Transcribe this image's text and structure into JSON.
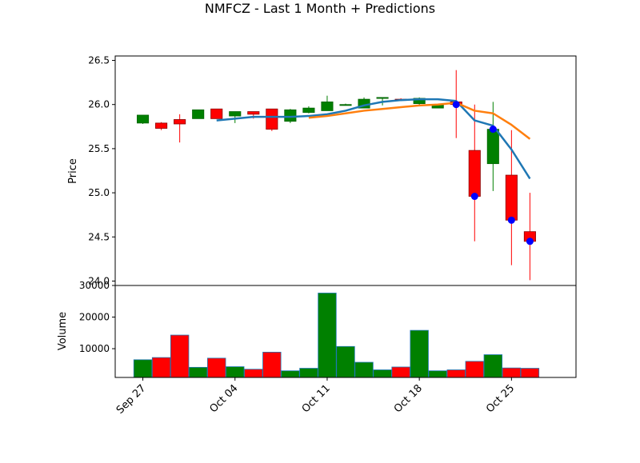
{
  "chart_data": {
    "type": "candlestick",
    "title": "NMFCZ - Last 1 Month + Predictions",
    "price_panel": {
      "ylabel": "Price",
      "ylim": [
        23.95,
        26.55
      ],
      "yticks": [
        "24.0",
        "24.5",
        "25.0",
        "25.5",
        "26.0",
        "26.5"
      ],
      "ytick_values": [
        24.0,
        24.5,
        25.0,
        25.5,
        26.0,
        26.5
      ]
    },
    "volume_panel": {
      "ylabel": "Volume",
      "ylim": [
        900,
        30000
      ],
      "yticks": [
        "10000",
        "20000",
        "30000"
      ],
      "ytick_values": [
        10000,
        20000,
        30000
      ]
    },
    "xlim": [
      -1.5,
      23.5
    ],
    "xticks": [
      {
        "index": 0,
        "label": "Sep 27"
      },
      {
        "index": 5,
        "label": "Oct 04"
      },
      {
        "index": 10,
        "label": "Oct 11"
      },
      {
        "index": 15,
        "label": "Oct 18"
      },
      {
        "index": 20,
        "label": "Oct 25"
      }
    ],
    "candles": [
      {
        "open": 25.79,
        "high": 25.88,
        "low": 25.78,
        "close": 25.88,
        "volume": 6500
      },
      {
        "open": 25.79,
        "high": 25.8,
        "low": 25.71,
        "close": 25.73,
        "volume": 7200
      },
      {
        "open": 25.83,
        "high": 25.89,
        "low": 25.57,
        "close": 25.78,
        "volume": 14300
      },
      {
        "open": 25.84,
        "high": 25.94,
        "low": 25.84,
        "close": 25.94,
        "volume": 4100
      },
      {
        "open": 25.95,
        "high": 25.95,
        "low": 25.84,
        "close": 25.84,
        "volume": 7000
      },
      {
        "open": 25.87,
        "high": 25.92,
        "low": 25.79,
        "close": 25.92,
        "volume": 4300
      },
      {
        "open": 25.92,
        "high": 25.92,
        "low": 25.84,
        "close": 25.89,
        "volume": 3500
      },
      {
        "open": 25.95,
        "high": 25.95,
        "low": 25.7,
        "close": 25.72,
        "volume": 8900
      },
      {
        "open": 25.81,
        "high": 25.95,
        "low": 25.79,
        "close": 25.94,
        "volume": 3000
      },
      {
        "open": 25.91,
        "high": 25.98,
        "low": 25.9,
        "close": 25.96,
        "volume": 3800
      },
      {
        "open": 25.93,
        "high": 26.1,
        "low": 25.93,
        "close": 26.03,
        "volume": 27600
      },
      {
        "open": 26.0,
        "high": 26.01,
        "low": 26.0,
        "close": 26.0,
        "volume": 10700
      },
      {
        "open": 25.96,
        "high": 26.08,
        "low": 25.96,
        "close": 26.06,
        "volume": 5700
      },
      {
        "open": 26.08,
        "high": 26.08,
        "low": 25.99,
        "close": 26.08,
        "volume": 3300
      },
      {
        "open": 26.06,
        "high": 26.07,
        "low": 26.05,
        "close": 26.05,
        "volume": 4200
      },
      {
        "open": 26.01,
        "high": 26.08,
        "low": 25.98,
        "close": 26.07,
        "volume": 15800
      },
      {
        "open": 25.96,
        "high": 26.0,
        "low": 25.96,
        "close": 26.0,
        "volume": 3000
      },
      {
        "open": 26.03,
        "high": 26.39,
        "low": 25.62,
        "close": 26.0,
        "volume": 3300
      },
      {
        "open": 25.48,
        "high": 26.0,
        "low": 24.45,
        "close": 24.96,
        "volume": 6000
      },
      {
        "open": 25.33,
        "high": 26.03,
        "low": 25.02,
        "close": 25.72,
        "volume": 8100
      },
      {
        "open": 25.2,
        "high": 25.71,
        "low": 24.18,
        "close": 24.69,
        "volume": 3900
      },
      {
        "open": 24.56,
        "high": 25.0,
        "low": 24.01,
        "close": 24.45,
        "volume": 3800
      }
    ],
    "series": [
      {
        "color": "#1f77b4",
        "x": [
          4,
          5,
          6,
          7,
          8,
          9,
          10,
          11,
          12,
          13,
          14,
          15,
          16,
          17,
          18,
          19,
          20,
          21
        ],
        "values": [
          25.82,
          25.84,
          25.86,
          25.86,
          25.86,
          25.87,
          25.89,
          25.93,
          25.99,
          26.03,
          26.05,
          26.06,
          26.06,
          26.04,
          25.82,
          25.76,
          25.49,
          25.16
        ]
      },
      {
        "color": "#ff7f0e",
        "x": [
          9,
          10,
          11,
          12,
          13,
          14,
          15,
          16,
          17,
          18,
          19,
          20,
          21
        ],
        "values": [
          25.85,
          25.87,
          25.9,
          25.93,
          25.95,
          25.97,
          25.99,
          26.0,
          26.02,
          25.93,
          25.9,
          25.77,
          25.61
        ]
      }
    ],
    "markers": {
      "color": "#0000ff",
      "x": [
        17,
        18,
        19,
        20,
        21
      ],
      "values": [
        26.0,
        24.96,
        25.72,
        24.69,
        24.45
      ]
    },
    "colors": {
      "up": "#008000",
      "down": "#ff0000",
      "up_edge": "#006400",
      "down_edge": "#8b0000",
      "volume_edge": "#1f77b4"
    }
  }
}
